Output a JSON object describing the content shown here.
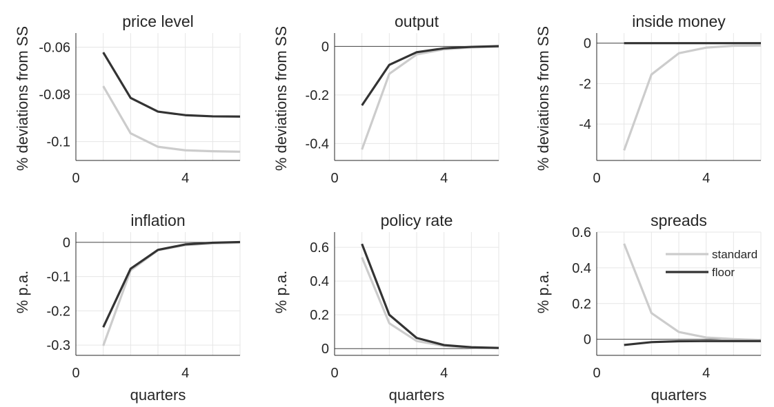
{
  "chart_data": [
    {
      "type": "line",
      "title": "price level",
      "ylabel": "% deviations from SS",
      "xlabel": "",
      "xlim": [
        0,
        6
      ],
      "ylim": [
        -0.108,
        -0.054
      ],
      "xticks": [
        1,
        2,
        3,
        4,
        5,
        6
      ],
      "xticklabels": [
        "0",
        "4"
      ],
      "yticks": [
        -0.1,
        -0.08,
        -0.06
      ],
      "yticklabels": [
        "-0.1",
        "-0.08",
        "-0.06"
      ],
      "zero_line": false,
      "x": [
        1,
        2,
        3,
        4,
        5,
        6
      ],
      "series": [
        {
          "key": "standard",
          "color": "#cccccc",
          "values": [
            -0.0765,
            -0.0965,
            -0.1022,
            -0.1037,
            -0.1041,
            -0.1043
          ]
        },
        {
          "key": "floor",
          "color": "#333333",
          "values": [
            -0.0622,
            -0.0815,
            -0.0873,
            -0.0888,
            -0.0893,
            -0.0894
          ]
        }
      ]
    },
    {
      "type": "line",
      "title": "output",
      "ylabel": "% deviations from SS",
      "xlabel": "",
      "xlim": [
        0,
        6
      ],
      "ylim": [
        -0.47,
        0.055
      ],
      "xticks": [
        1,
        2,
        3,
        4,
        5,
        6
      ],
      "xticklabels": [
        "0",
        "4"
      ],
      "yticks": [
        -0.4,
        -0.2,
        0
      ],
      "yticklabels": [
        "-0.4",
        "-0.2",
        "0"
      ],
      "zero_line": true,
      "x": [
        1,
        2,
        3,
        4,
        5,
        6
      ],
      "series": [
        {
          "key": "standard",
          "color": "#cccccc",
          "values": [
            -0.425,
            -0.113,
            -0.033,
            -0.012,
            -0.004,
            -0.001
          ]
        },
        {
          "key": "floor",
          "color": "#333333",
          "values": [
            -0.243,
            -0.076,
            -0.024,
            -0.008,
            -0.002,
            0.001
          ]
        }
      ]
    },
    {
      "type": "line",
      "title": "inside money",
      "ylabel": "% deviations from SS",
      "xlabel": "",
      "xlim": [
        0,
        6
      ],
      "ylim": [
        -5.8,
        0.5
      ],
      "xticks": [
        1,
        2,
        3,
        4,
        5,
        6
      ],
      "xticklabels": [
        "0",
        "4"
      ],
      "yticks": [
        -4,
        -2,
        0
      ],
      "yticklabels": [
        "-4",
        "-2",
        "0"
      ],
      "zero_line": true,
      "x": [
        1,
        2,
        3,
        4,
        5,
        6
      ],
      "series": [
        {
          "key": "standard",
          "color": "#cccccc",
          "values": [
            -5.3,
            -1.55,
            -0.5,
            -0.22,
            -0.13,
            -0.12
          ]
        },
        {
          "key": "floor",
          "color": "#333333",
          "values": [
            0,
            0,
            0,
            0,
            0,
            0
          ]
        }
      ]
    },
    {
      "type": "line",
      "title": "inflation",
      "ylabel": "% p.a.",
      "xlabel": "quarters",
      "xlim": [
        0,
        6
      ],
      "ylim": [
        -0.33,
        0.03
      ],
      "xticks": [
        1,
        2,
        3,
        4,
        5,
        6
      ],
      "xticklabels": [
        "0",
        "4"
      ],
      "yticks": [
        -0.3,
        -0.2,
        -0.1,
        0
      ],
      "yticklabels": [
        "-0.3",
        "-0.2",
        "-0.1",
        "0"
      ],
      "zero_line": true,
      "x": [
        1,
        2,
        3,
        4,
        5,
        6
      ],
      "series": [
        {
          "key": "standard",
          "color": "#cccccc",
          "values": [
            -0.302,
            -0.082,
            -0.023,
            -0.008,
            -0.003,
            -0.001
          ]
        },
        {
          "key": "floor",
          "color": "#333333",
          "values": [
            -0.248,
            -0.077,
            -0.022,
            -0.006,
            -0.001,
            0.001
          ]
        }
      ]
    },
    {
      "type": "line",
      "title": "policy rate",
      "ylabel": "% p.a.",
      "xlabel": "quarters",
      "xlim": [
        0,
        6
      ],
      "ylim": [
        -0.04,
        0.69
      ],
      "xticks": [
        1,
        2,
        3,
        4,
        5,
        6
      ],
      "xticklabels": [
        "0",
        "4"
      ],
      "yticks": [
        0,
        0.2,
        0.4,
        0.6
      ],
      "yticklabels": [
        "0",
        "0.2",
        "0.4",
        "0.6"
      ],
      "zero_line": true,
      "x": [
        1,
        2,
        3,
        4,
        5,
        6
      ],
      "series": [
        {
          "key": "standard",
          "color": "#cccccc",
          "values": [
            0.54,
            0.15,
            0.045,
            0.016,
            0.006,
            0.002
          ]
        },
        {
          "key": "floor",
          "color": "#333333",
          "values": [
            0.62,
            0.2,
            0.063,
            0.021,
            0.008,
            0.004
          ]
        }
      ]
    },
    {
      "type": "line",
      "title": "spreads",
      "ylabel": "% p.a.",
      "xlabel": "quarters",
      "xlim": [
        0,
        6
      ],
      "ylim": [
        -0.09,
        0.6
      ],
      "xticks": [
        1,
        2,
        3,
        4,
        5,
        6
      ],
      "xticklabels": [
        "0",
        "4"
      ],
      "yticks": [
        0,
        0.2,
        0.4,
        0.6
      ],
      "yticklabels": [
        "0",
        "0.2",
        "0.4",
        "0.6"
      ],
      "zero_line": true,
      "x": [
        1,
        2,
        3,
        4,
        5,
        6
      ],
      "series": [
        {
          "key": "standard",
          "name": "standard",
          "color": "#cccccc",
          "values": [
            0.535,
            0.147,
            0.041,
            0.01,
            0.001,
            -0.004
          ]
        },
        {
          "key": "floor",
          "name": "floor",
          "color": "#333333",
          "values": [
            -0.032,
            -0.016,
            -0.011,
            -0.01,
            -0.01,
            -0.01
          ]
        }
      ],
      "legend": {
        "placement": "top-right",
        "entries": [
          "standard",
          "floor"
        ]
      }
    }
  ]
}
